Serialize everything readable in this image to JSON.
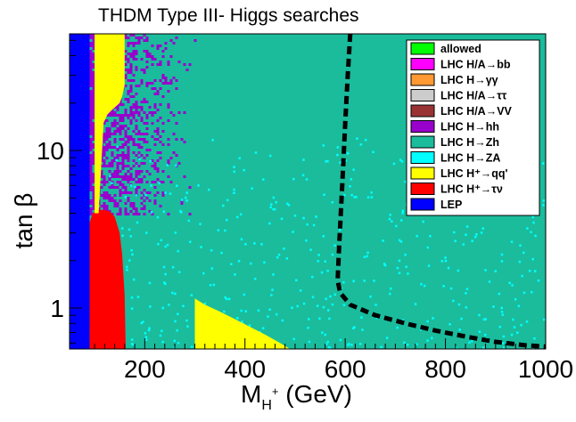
{
  "chart_data": {
    "type": "area",
    "title": "THDM Type III- Higgs searches",
    "xlabel": "M",
    "xlabel_sub": "H",
    "xlabel_sup": "+",
    "xlabel_unit": " (GeV)",
    "ylabel": "tan β",
    "xlim": [
      50,
      1000
    ],
    "ylim": [
      0.55,
      55
    ],
    "yscale": "log",
    "x_ticks": [
      {
        "value": 200,
        "label": "200"
      },
      {
        "value": 400,
        "label": "400"
      },
      {
        "value": 600,
        "label": "600"
      },
      {
        "value": 800,
        "label": "800"
      },
      {
        "value": 1000,
        "label": "1000"
      }
    ],
    "y_ticks": [
      {
        "value": 1,
        "label": "1"
      },
      {
        "value": 10,
        "label": "10"
      }
    ],
    "legend": [
      {
        "label": "allowed",
        "color": "#00ff00"
      },
      {
        "label": "LHC H/A→bb",
        "color": "#ff00ff"
      },
      {
        "label": "LHC H→γγ",
        "color": "#ff9933"
      },
      {
        "label": "LHC H/A→ττ",
        "color": "#cccccc"
      },
      {
        "label": "LHC H/A→VV",
        "color": "#993333"
      },
      {
        "label": "LHC H→hh",
        "color": "#9900cc"
      },
      {
        "label": "LHC H→Zh",
        "color": "#1abc9c"
      },
      {
        "label": "LHC H→ZA",
        "color": "#00ffff"
      },
      {
        "label": "LHC H⁺→qq'",
        "color": "#ffff00"
      },
      {
        "label": "LHC H⁺→τν",
        "color": "#ff0000"
      },
      {
        "label": "LEP",
        "color": "#0000ff"
      }
    ],
    "regions": [
      {
        "name": "LEP",
        "color": "#0000ff",
        "x_range": [
          50,
          90
        ],
        "y_range": [
          0.55,
          55
        ]
      },
      {
        "name": "LHC H+ to tau nu",
        "color": "#ff0000",
        "x": [
          90,
          95,
          100,
          110,
          120,
          130,
          140,
          150,
          155,
          160,
          162
        ],
        "y_upper": [
          3.5,
          3.9,
          4.1,
          4.2,
          4.2,
          4.1,
          3.8,
          3.0,
          2.2,
          1.2,
          0.55
        ]
      },
      {
        "name": "LHC H+ to qq' (low mass)",
        "color": "#ffff00",
        "x": [
          108,
          118,
          126,
          134,
          142,
          150,
          155,
          160
        ],
        "y_lower": [
          4.0,
          15,
          17,
          18,
          19,
          20,
          22,
          26
        ]
      },
      {
        "name": "LHC H+ to qq' (mid mass)",
        "color": "#ffff00",
        "x": [
          300,
          320,
          350,
          380,
          410,
          440,
          470,
          490
        ],
        "y_upper": [
          1.15,
          1.05,
          0.95,
          0.85,
          0.76,
          0.68,
          0.6,
          0.55
        ]
      },
      {
        "name": "LHC H to hh",
        "color": "#9900cc",
        "x_range": [
          90,
          310
        ],
        "y_range": [
          4.0,
          55
        ]
      }
    ],
    "series": [
      {
        "name": "exclusion boundary",
        "style": "dashed",
        "color": "#000000",
        "x": [
          610,
          605,
          600,
          596,
          592,
          588,
          585,
          590,
          610,
          660,
          720,
          780,
          840,
          900,
          960,
          1000
        ],
        "y": [
          55,
          30,
          15,
          8,
          4.5,
          2.5,
          1.5,
          1.25,
          1.05,
          0.9,
          0.8,
          0.72,
          0.66,
          0.61,
          0.58,
          0.57
        ]
      }
    ]
  }
}
